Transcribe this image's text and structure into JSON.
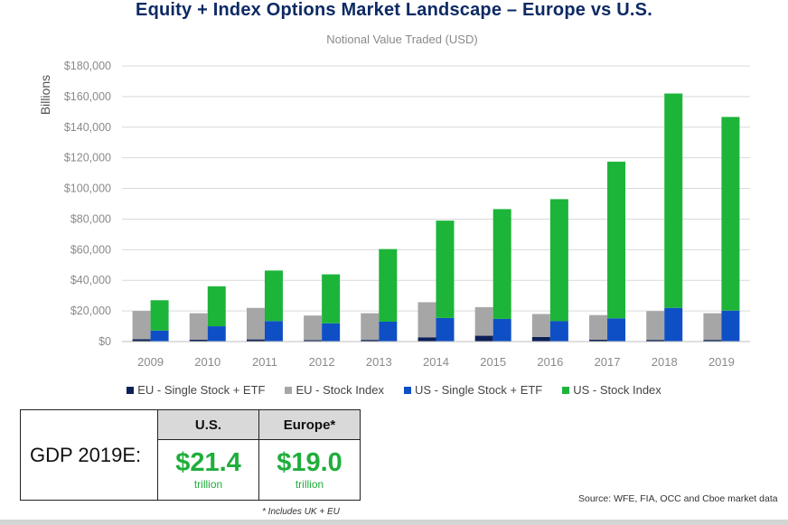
{
  "title": "Equity + Index Options Market Landscape – Europe vs U.S.",
  "subtitle": "Notional Value Traded (USD)",
  "chart_data": {
    "type": "bar",
    "stacking": "two stacked columns per year (EU left, US right)",
    "categories": [
      "2009",
      "2010",
      "2011",
      "2012",
      "2013",
      "2014",
      "2015",
      "2016",
      "2017",
      "2018",
      "2019"
    ],
    "ylabel": "Billions",
    "ylim": [
      0,
      180000
    ],
    "yticks": [
      0,
      20000,
      40000,
      60000,
      80000,
      100000,
      120000,
      140000,
      160000,
      180000
    ],
    "ytick_labels": [
      "$0",
      "$20,000",
      "$40,000",
      "$60,000",
      "$80,000",
      "$100,000",
      "$120,000",
      "$140,000",
      "$160,000",
      "$180,000"
    ],
    "grid": true,
    "legend_position": "bottom",
    "series": [
      {
        "name": "EU - Single Stock + ETF",
        "stack": "EU",
        "color": "#0c2157",
        "values": [
          1500,
          1200,
          1400,
          1000,
          1100,
          2800,
          3800,
          3000,
          1200,
          1100,
          1100
        ]
      },
      {
        "name": "EU - Stock Index",
        "stack": "EU",
        "color": "#a6a6a6",
        "values": [
          18500,
          17300,
          20600,
          16000,
          17400,
          22900,
          18700,
          15000,
          16100,
          18800,
          17400
        ]
      },
      {
        "name": "US - Single Stock + ETF",
        "stack": "US",
        "color": "#0f4fc6",
        "values": [
          7200,
          10000,
          13400,
          11900,
          13000,
          15400,
          14800,
          13300,
          15200,
          22000,
          20200
        ]
      },
      {
        "name": "US - Stock Index",
        "stack": "US",
        "color": "#1db43a",
        "values": [
          19800,
          26100,
          33000,
          32000,
          47400,
          63600,
          71700,
          79700,
          102300,
          140000,
          126500
        ]
      }
    ]
  },
  "gdp_table": {
    "row_label": "GDP 2019E:",
    "columns": [
      {
        "header": "U.S.",
        "value": "$21.4",
        "unit": "trillion"
      },
      {
        "header": "Europe*",
        "value": "$19.0",
        "unit": "trillion"
      }
    ],
    "value_color": "#1fae3b"
  },
  "footnote": "* Includes UK + EU",
  "source": "Source: WFE, FIA, OCC and Cboe market data"
}
